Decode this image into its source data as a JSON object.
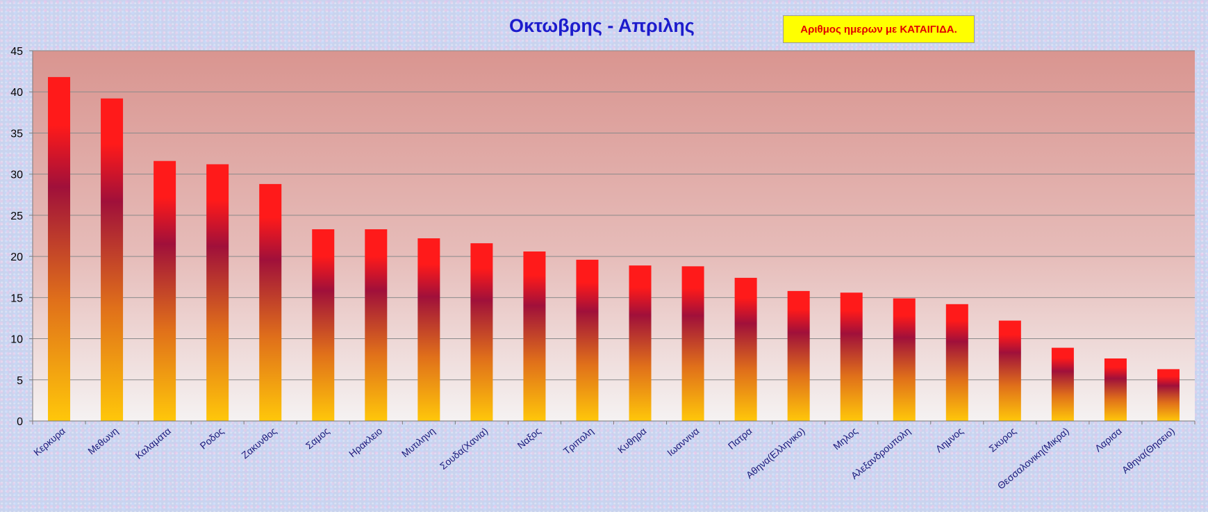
{
  "chart_data": {
    "type": "bar",
    "title": "Οκτωβρης - Απριλης",
    "legend_label": "Αριθμος ημερων με ΚΑΤΑΙΓΙΔΑ.",
    "categories": [
      "Κερκυρα",
      "Μεθωνη",
      "Καλαματα",
      "Ροδος",
      "Ζακυνθος",
      "Σαμος",
      "Ηρακλειο",
      "Μυτιληνη",
      "Σουδα(Χανια)",
      "Ναξος",
      "Τριπολη",
      "Κυθηρα",
      "Ιωαννινα",
      "Πατρα",
      "Αθηνα(Ελληνικο)",
      "Μηλος",
      "Αλεξανδρουπολη",
      "Λημνος",
      "Σκυρος",
      "Θεσσαλονικη(Μικρα)",
      "Λαρισα",
      "Αθηνα(Θησειο)"
    ],
    "values": [
      41.8,
      39.2,
      31.6,
      31.2,
      28.8,
      23.3,
      23.3,
      22.2,
      21.6,
      20.6,
      19.6,
      18.9,
      18.8,
      17.4,
      15.8,
      15.6,
      14.9,
      14.2,
      12.2,
      8.9,
      7.6,
      6.3
    ],
    "ylim": [
      0,
      45
    ],
    "yticks": [
      0,
      5,
      10,
      15,
      20,
      25,
      30,
      35,
      40,
      45
    ],
    "grid": true,
    "legend_position": "top-right",
    "colors": {
      "bar_top": "#ff1a1a",
      "bar_mid": "#a0103a",
      "bar_low": "#e0701a",
      "bar_bottom": "#ffc70a",
      "plot_top": "#d99590",
      "plot_bottom": "#f5f2f2",
      "title": "#1c1ccc",
      "legend_text": "#e00000",
      "legend_bg": "#ffff00"
    }
  }
}
